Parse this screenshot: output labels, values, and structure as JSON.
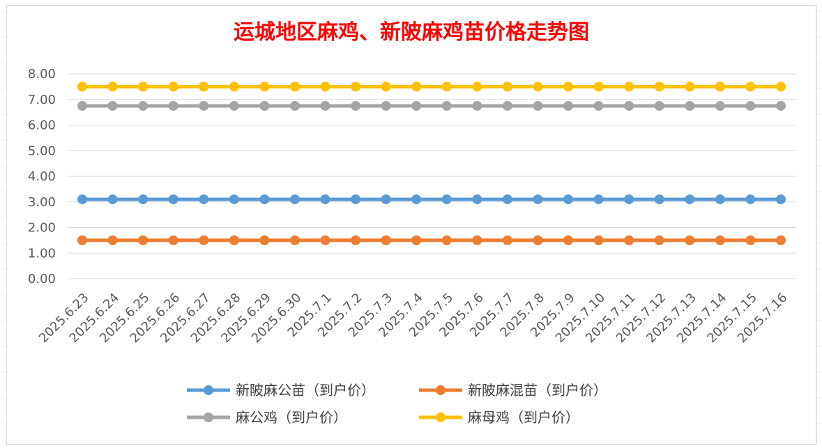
{
  "chart_data": {
    "type": "line",
    "title": "运城地区麻鸡、新陂麻鸡苗价格走势图",
    "xlabel": "",
    "ylabel": "",
    "ylim": [
      0,
      8
    ],
    "yticks": [
      "0.00",
      "1.00",
      "2.00",
      "3.00",
      "4.00",
      "5.00",
      "6.00",
      "7.00",
      "8.00"
    ],
    "grid": true,
    "legend_position": "bottom",
    "categories": [
      "2025.6.23",
      "2025.6.24",
      "2025.6.25",
      "2025.6.26",
      "2025.6.27",
      "2025.6.28",
      "2025.6.29",
      "2025.6.30",
      "2025.7.1",
      "2025.7.2",
      "2025.7.3",
      "2025.7.4",
      "2025.7.5",
      "2025.7.6",
      "2025.7.7",
      "2025.7.8",
      "2025.7.9",
      "2025.7.10",
      "2025.7.11",
      "2025.7.12",
      "2025.7.13",
      "2025.7.14",
      "2025.7.15",
      "2025.7.16"
    ],
    "series": [
      {
        "name": "新陂麻公苗（到户价）",
        "color": "#5b9bd5",
        "values": [
          3.1,
          3.1,
          3.1,
          3.1,
          3.1,
          3.1,
          3.1,
          3.1,
          3.1,
          3.1,
          3.1,
          3.1,
          3.1,
          3.1,
          3.1,
          3.1,
          3.1,
          3.1,
          3.1,
          3.1,
          3.1,
          3.1,
          3.1,
          3.1
        ]
      },
      {
        "name": "新陂麻混苗（到户价）",
        "color": "#ed7d31",
        "values": [
          1.5,
          1.5,
          1.5,
          1.5,
          1.5,
          1.5,
          1.5,
          1.5,
          1.5,
          1.5,
          1.5,
          1.5,
          1.5,
          1.5,
          1.5,
          1.5,
          1.5,
          1.5,
          1.5,
          1.5,
          1.5,
          1.5,
          1.5,
          1.5
        ]
      },
      {
        "name": "麻公鸡（到户价）",
        "color": "#a5a5a5",
        "values": [
          6.75,
          6.75,
          6.75,
          6.75,
          6.75,
          6.75,
          6.75,
          6.75,
          6.75,
          6.75,
          6.75,
          6.75,
          6.75,
          6.75,
          6.75,
          6.75,
          6.75,
          6.75,
          6.75,
          6.75,
          6.75,
          6.75,
          6.75,
          6.75
        ]
      },
      {
        "name": "麻母鸡（到户价）",
        "color": "#ffc000",
        "values": [
          7.5,
          7.5,
          7.5,
          7.5,
          7.5,
          7.5,
          7.5,
          7.5,
          7.5,
          7.5,
          7.5,
          7.5,
          7.5,
          7.5,
          7.5,
          7.5,
          7.5,
          7.5,
          7.5,
          7.5,
          7.5,
          7.5,
          7.5,
          7.5
        ]
      }
    ]
  }
}
